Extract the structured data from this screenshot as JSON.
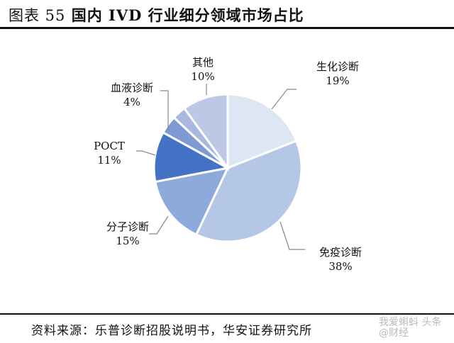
{
  "header": {
    "figure_label": "图表 55",
    "title": "国内 IVD 行业细分领域市场占比"
  },
  "footer": {
    "source": "资料来源：乐普诊断招股说明书，华安证券研究所",
    "watermark": "我爱蝌蚪 头条 @财经"
  },
  "chart_data": {
    "type": "pie",
    "title": "国内 IVD 行业细分领域市场占比",
    "start_angle": "12 o'clock, clockwise",
    "categories": [
      "生化诊断",
      "免疫诊断",
      "分子诊断",
      "POCT",
      "血液诊断",
      "(未标注)",
      "其他"
    ],
    "values": [
      19,
      38,
      15,
      11,
      4,
      3,
      10
    ],
    "value_labels": [
      "19%",
      "38%",
      "15%",
      "11%",
      "4%",
      "",
      "10%"
    ],
    "colors": [
      "#dde6f3",
      "#b4c7e6",
      "#8eaadb",
      "#4472c4",
      "#7f99d4",
      "#a9b8e0",
      "#bcc8e6"
    ],
    "legend": "none (callout labels)"
  },
  "labels": {
    "biochem": {
      "name": "生化诊断",
      "pct": "19%"
    },
    "immuno": {
      "name": "免疫诊断",
      "pct": "38%"
    },
    "molecular": {
      "name": "分子诊断",
      "pct": "15%"
    },
    "poct": {
      "name": "POCT",
      "pct": "11%"
    },
    "blood": {
      "name": "血液诊断",
      "pct": "4%"
    },
    "other": {
      "name": "其他",
      "pct": "10%"
    }
  }
}
